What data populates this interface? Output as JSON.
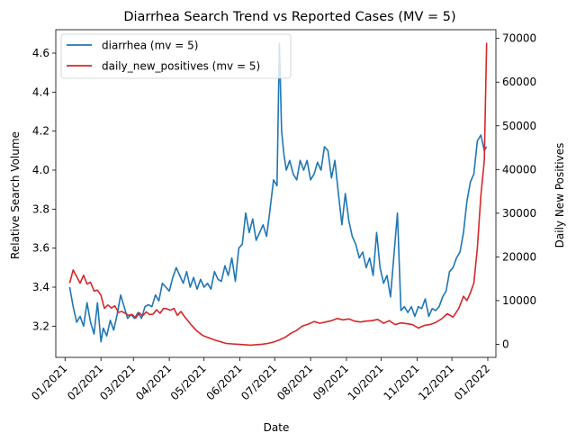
{
  "chart_data": {
    "type": "line",
    "title": "Diarrhea Search Trend vs Reported Cases (MV = 5)",
    "xlabel": "Date",
    "ylabel_left": "Relative Search Volume",
    "ylabel_right": "Daily New Positives",
    "x_ticks": [
      "01/2021",
      "02/2021",
      "03/2021",
      "04/2021",
      "05/2021",
      "06/2021",
      "07/2021",
      "08/2021",
      "09/2021",
      "10/2021",
      "11/2021",
      "12/2021",
      "01/2022"
    ],
    "y_left_ticks": [
      "3.2",
      "3.4",
      "3.6",
      "3.8",
      "4.0",
      "4.2",
      "4.4",
      "4.6"
    ],
    "y_right_ticks": [
      "0",
      "10000",
      "20000",
      "30000",
      "40000",
      "50000",
      "60000",
      "70000"
    ],
    "ylim_left": [
      3.04,
      4.72
    ],
    "ylim_right": [
      -3000,
      72000
    ],
    "xlim_days": [
      -8,
      372
    ],
    "legend_position": "top-left",
    "series": [
      {
        "name": "diarrhea (mv = 5)",
        "axis": "left",
        "color": "#1f77b4",
        "x": [
          "2021-01-05",
          "2021-01-08",
          "2021-01-11",
          "2021-01-14",
          "2021-01-17",
          "2021-01-20",
          "2021-01-23",
          "2021-01-26",
          "2021-01-29",
          "2021-02-01",
          "2021-02-03",
          "2021-02-06",
          "2021-02-09",
          "2021-02-12",
          "2021-02-15",
          "2021-02-18",
          "2021-02-21",
          "2021-02-24",
          "2021-02-27",
          "2021-03-02",
          "2021-03-05",
          "2021-03-08",
          "2021-03-11",
          "2021-03-14",
          "2021-03-17",
          "2021-03-20",
          "2021-03-23",
          "2021-03-26",
          "2021-03-29",
          "2021-04-01",
          "2021-04-04",
          "2021-04-07",
          "2021-04-10",
          "2021-04-13",
          "2021-04-16",
          "2021-04-19",
          "2021-04-22",
          "2021-04-25",
          "2021-04-28",
          "2021-05-01",
          "2021-05-04",
          "2021-05-07",
          "2021-05-10",
          "2021-05-13",
          "2021-05-16",
          "2021-05-19",
          "2021-05-22",
          "2021-05-25",
          "2021-05-28",
          "2021-05-31",
          "2021-06-03",
          "2021-06-06",
          "2021-06-09",
          "2021-06-12",
          "2021-06-15",
          "2021-06-18",
          "2021-06-21",
          "2021-06-24",
          "2021-06-27",
          "2021-06-30",
          "2021-07-03",
          "2021-07-05",
          "2021-07-07",
          "2021-07-09",
          "2021-07-11",
          "2021-07-14",
          "2021-07-17",
          "2021-07-20",
          "2021-07-23",
          "2021-07-26",
          "2021-07-29",
          "2021-08-01",
          "2021-08-04",
          "2021-08-07",
          "2021-08-10",
          "2021-08-13",
          "2021-08-16",
          "2021-08-19",
          "2021-08-22",
          "2021-08-25",
          "2021-08-28",
          "2021-08-31",
          "2021-09-03",
          "2021-09-06",
          "2021-09-09",
          "2021-09-12",
          "2021-09-15",
          "2021-09-18",
          "2021-09-21",
          "2021-09-24",
          "2021-09-27",
          "2021-09-30",
          "2021-10-03",
          "2021-10-06",
          "2021-10-09",
          "2021-10-12",
          "2021-10-15",
          "2021-10-18",
          "2021-10-21",
          "2021-10-24",
          "2021-10-27",
          "2021-10-30",
          "2021-11-02",
          "2021-11-05",
          "2021-11-08",
          "2021-11-11",
          "2021-11-14",
          "2021-11-17",
          "2021-11-20",
          "2021-11-23",
          "2021-11-26",
          "2021-11-29",
          "2021-12-02",
          "2021-12-05",
          "2021-12-08",
          "2021-12-11",
          "2021-12-14",
          "2021-12-17",
          "2021-12-20",
          "2021-12-23",
          "2021-12-26",
          "2021-12-29",
          "2021-12-31"
        ],
        "values": [
          3.4,
          3.3,
          3.22,
          3.25,
          3.2,
          3.32,
          3.22,
          3.16,
          3.32,
          3.12,
          3.19,
          3.15,
          3.23,
          3.18,
          3.26,
          3.36,
          3.3,
          3.24,
          3.26,
          3.24,
          3.27,
          3.24,
          3.3,
          3.31,
          3.3,
          3.36,
          3.33,
          3.42,
          3.4,
          3.38,
          3.45,
          3.5,
          3.46,
          3.42,
          3.48,
          3.4,
          3.45,
          3.39,
          3.44,
          3.4,
          3.42,
          3.39,
          3.48,
          3.44,
          3.43,
          3.51,
          3.46,
          3.55,
          3.43,
          3.6,
          3.62,
          3.78,
          3.68,
          3.75,
          3.64,
          3.68,
          3.72,
          3.66,
          3.8,
          3.95,
          3.92,
          4.65,
          4.2,
          4.08,
          4.0,
          4.05,
          3.98,
          3.95,
          4.05,
          4.0,
          4.05,
          3.95,
          3.98,
          4.04,
          4.0,
          4.12,
          4.1,
          3.96,
          4.05,
          3.88,
          3.72,
          3.88,
          3.74,
          3.66,
          3.62,
          3.55,
          3.58,
          3.5,
          3.55,
          3.46,
          3.68,
          3.5,
          3.42,
          3.46,
          3.35,
          3.57,
          3.78,
          3.28,
          3.3,
          3.27,
          3.3,
          3.25,
          3.3,
          3.29,
          3.34,
          3.25,
          3.29,
          3.28,
          3.3,
          3.35,
          3.38,
          3.48,
          3.5,
          3.55,
          3.58,
          3.68,
          3.84,
          3.94,
          3.98,
          4.15,
          4.18,
          4.1,
          4.12
        ]
      },
      {
        "name": "daily_new_positives (mv = 5)",
        "axis": "right",
        "color": "#d62728",
        "x": [
          "2021-01-05",
          "2021-01-08",
          "2021-01-11",
          "2021-01-14",
          "2021-01-17",
          "2021-01-20",
          "2021-01-23",
          "2021-01-26",
          "2021-01-29",
          "2021-02-01",
          "2021-02-04",
          "2021-02-07",
          "2021-02-10",
          "2021-02-13",
          "2021-02-16",
          "2021-02-19",
          "2021-02-22",
          "2021-02-25",
          "2021-02-28",
          "2021-03-03",
          "2021-03-06",
          "2021-03-09",
          "2021-03-12",
          "2021-03-15",
          "2021-03-18",
          "2021-03-21",
          "2021-03-24",
          "2021-03-27",
          "2021-03-30",
          "2021-04-02",
          "2021-04-05",
          "2021-04-08",
          "2021-04-11",
          "2021-04-14",
          "2021-04-17",
          "2021-04-20",
          "2021-04-25",
          "2021-04-30",
          "2021-05-05",
          "2021-05-10",
          "2021-05-15",
          "2021-05-20",
          "2021-05-25",
          "2021-05-30",
          "2021-06-05",
          "2021-06-10",
          "2021-06-15",
          "2021-06-20",
          "2021-06-25",
          "2021-06-30",
          "2021-07-05",
          "2021-07-10",
          "2021-07-15",
          "2021-07-20",
          "2021-07-25",
          "2021-07-30",
          "2021-08-04",
          "2021-08-09",
          "2021-08-14",
          "2021-08-19",
          "2021-08-24",
          "2021-08-29",
          "2021-09-03",
          "2021-09-08",
          "2021-09-13",
          "2021-09-18",
          "2021-09-23",
          "2021-09-28",
          "2021-10-03",
          "2021-10-08",
          "2021-10-13",
          "2021-10-18",
          "2021-10-23",
          "2021-10-28",
          "2021-11-02",
          "2021-11-07",
          "2021-11-12",
          "2021-11-17",
          "2021-11-22",
          "2021-11-27",
          "2021-12-02",
          "2021-12-07",
          "2021-12-11",
          "2021-12-14",
          "2021-12-17",
          "2021-12-20",
          "2021-12-23",
          "2021-12-26",
          "2021-12-29",
          "2021-12-31"
        ],
        "values": [
          14000,
          17000,
          15500,
          14000,
          15800,
          13800,
          14200,
          12200,
          12400,
          11200,
          8200,
          9000,
          8300,
          8800,
          7300,
          7500,
          7100,
          6600,
          6800,
          6000,
          7200,
          6500,
          7400,
          6800,
          6900,
          7900,
          7100,
          8200,
          8100,
          7800,
          8200,
          6600,
          7500,
          6400,
          5400,
          4400,
          3000,
          2000,
          1500,
          1000,
          600,
          200,
          100,
          0,
          -100,
          -200,
          -100,
          0,
          200,
          500,
          1000,
          1600,
          2500,
          3200,
          4200,
          4600,
          5200,
          4800,
          5100,
          5400,
          5900,
          5600,
          5800,
          5300,
          5100,
          5300,
          5400,
          5700,
          4800,
          5400,
          4500,
          4900,
          4700,
          4500,
          3700,
          4300,
          4500,
          5000,
          5800,
          7000,
          6200,
          8200,
          11000,
          10000,
          11800,
          14000,
          22000,
          34000,
          42000,
          69000
        ]
      }
    ]
  }
}
